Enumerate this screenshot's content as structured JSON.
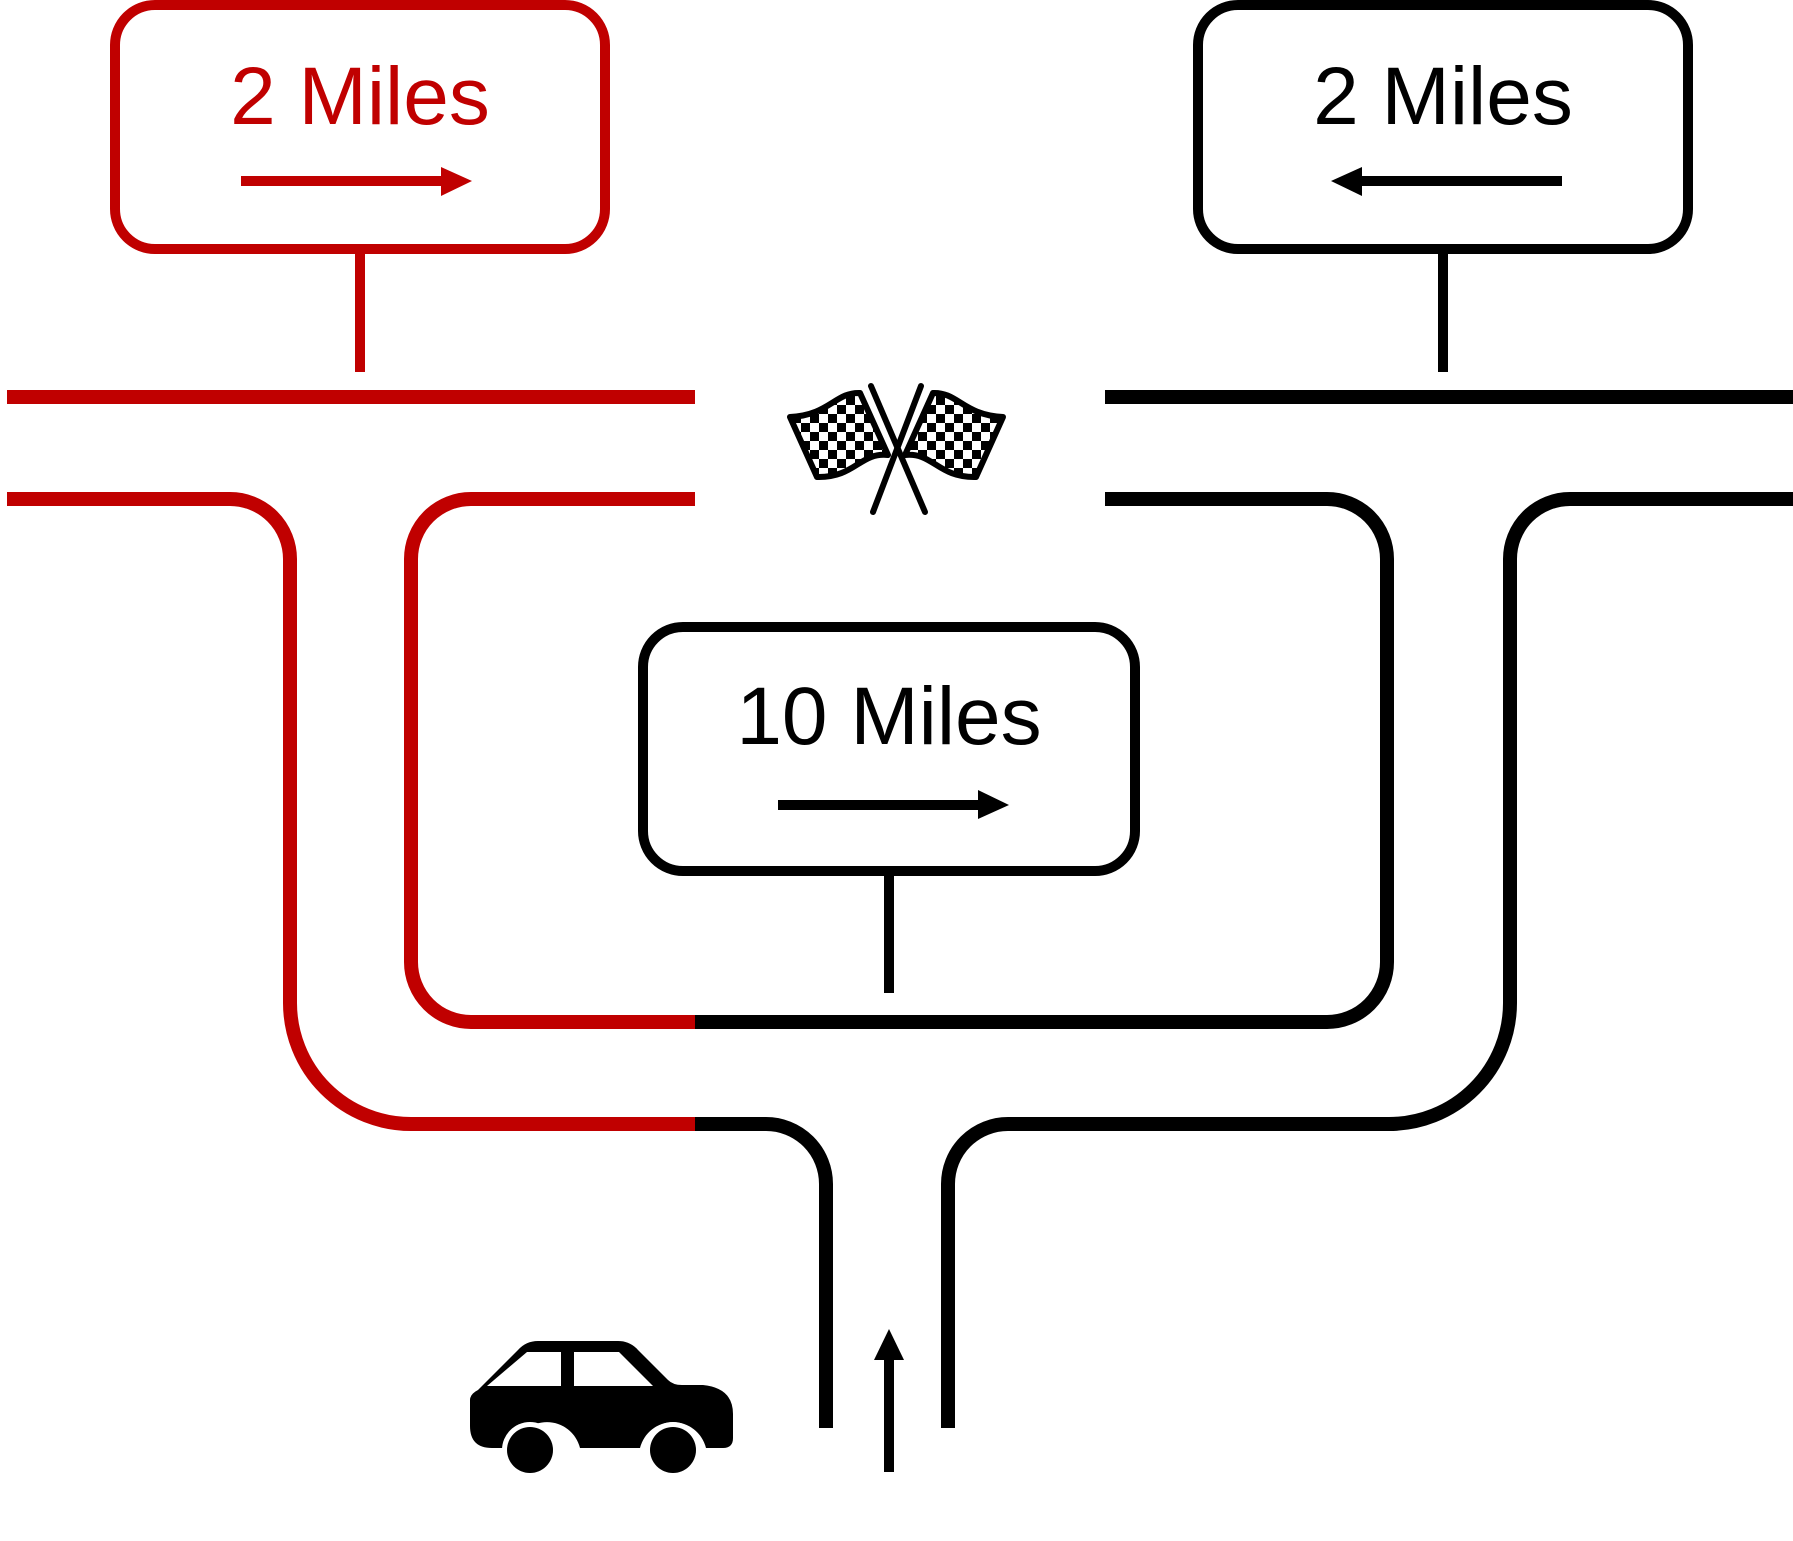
{
  "colors": {
    "highlight": "#c00000",
    "normal": "#000000",
    "background": "#ffffff"
  },
  "signs": {
    "left": {
      "text": "2 Miles",
      "arrow": "right",
      "color": "highlight"
    },
    "right": {
      "text": "2 Miles",
      "arrow": "left",
      "color": "normal"
    },
    "center": {
      "text": "10 Miles",
      "arrow": "right",
      "color": "normal"
    }
  },
  "icons": {
    "finish": "checkered-flags-icon",
    "vehicle": "car-icon",
    "direction": "up-arrow-icon"
  }
}
